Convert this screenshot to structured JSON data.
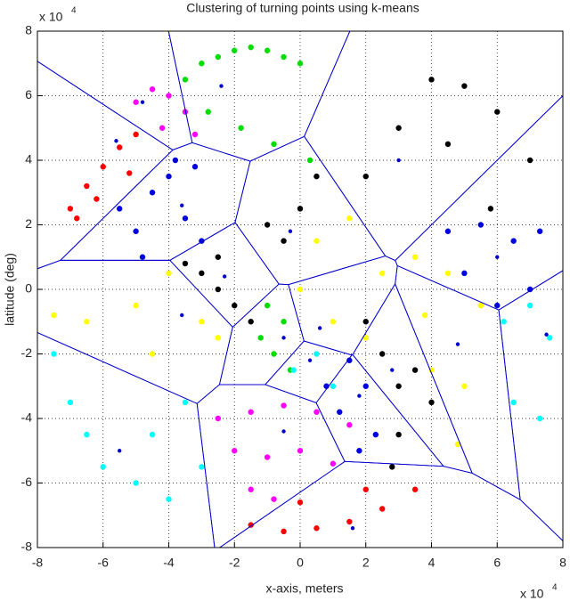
{
  "chart_data": {
    "type": "scatter",
    "title": "Clustering of turning points using k-means",
    "x_label": "x-axis, meters",
    "y_label": "latitude (deg)",
    "x_scale_note": {
      "base": "x 10",
      "exponent": "4"
    },
    "y_scale_note": {
      "base": "x 10",
      "exponent": "4"
    },
    "xlim": [
      -8,
      8
    ],
    "ylim": [
      -8,
      8
    ],
    "xticks": [
      -8,
      -6,
      -4,
      -2,
      0,
      2,
      4,
      6,
      8
    ],
    "yticks": [
      -8,
      -6,
      -4,
      -2,
      0,
      2,
      4,
      6,
      8
    ],
    "grid": true,
    "voronoi": true,
    "series": [
      {
        "color": "#00dd00",
        "x": [
          -3.5,
          -3,
          -2.5,
          -2,
          -1.5,
          -1,
          -0.5,
          0,
          -2.8,
          -1.8,
          -0.8,
          0.3,
          -1,
          -0.5,
          -0.8,
          -0.3,
          -1.2
        ],
        "y": [
          6.5,
          7,
          7.2,
          7.4,
          7.5,
          7.4,
          7.2,
          7,
          5.5,
          5,
          4.5,
          4,
          -0.5,
          -1,
          -2,
          -2.5,
          -1.5
        ]
      },
      {
        "color": "#ff00ff",
        "x": [
          -5,
          -4.5,
          -4,
          -3.5,
          -4.2,
          -3.2,
          -2.5,
          -1.5,
          -0.5,
          0.5,
          1.5,
          -2,
          -1,
          0,
          1,
          -1.5,
          -0.8
        ],
        "y": [
          5.8,
          6.2,
          6,
          5.5,
          5,
          4.8,
          -4,
          -3.8,
          -3.6,
          -3.8,
          -4.2,
          -5,
          -5.2,
          -5,
          -5.4,
          -6.2,
          -6.5
        ]
      },
      {
        "color": "#ff0000",
        "x": [
          -7,
          -6.5,
          -6,
          -5.5,
          -5,
          -6.8,
          -6.2,
          -5.2,
          -1.5,
          -0.5,
          0.5,
          1.5,
          2.5,
          3.5,
          0,
          2
        ],
        "y": [
          2.5,
          3.2,
          3.8,
          4.4,
          4.8,
          2.2,
          2.8,
          3.6,
          -7.3,
          -7.5,
          -7.4,
          -7.2,
          -6.8,
          -6.2,
          -6.6,
          -6.2
        ]
      },
      {
        "color": "#0000dd",
        "x": [
          -5.5,
          -5,
          -4.5,
          -4,
          -3.5,
          -3,
          -4.8,
          -3.8,
          -3.2,
          0.8,
          1.5,
          2,
          2.3,
          1.2,
          1.8,
          4.5,
          5.5,
          6.5,
          7.3,
          5,
          6,
          7
        ],
        "y": [
          2.5,
          1.8,
          3,
          3.5,
          2.2,
          1.5,
          1,
          4,
          3.8,
          -3,
          -2.2,
          -3,
          -4.5,
          -3.8,
          -5,
          1.8,
          2,
          1.5,
          1.8,
          0.5,
          -0.5,
          0
        ]
      },
      {
        "color": "#000000",
        "x": [
          -3.5,
          -3,
          -2.5,
          -2,
          -1.5,
          -2.5,
          -1,
          0,
          0.5,
          -0.5,
          2,
          2.5,
          3,
          3.5,
          4,
          3,
          2.8,
          2,
          3,
          4,
          5,
          6,
          7,
          4.5,
          5.8
        ],
        "y": [
          0.8,
          0.5,
          0,
          -0.5,
          -1,
          1,
          2,
          2.5,
          3.5,
          1.5,
          -1,
          -2,
          -3,
          -2.5,
          -3.5,
          -4.5,
          -5.5,
          3.5,
          5,
          6.5,
          6.3,
          5.5,
          4,
          4.5,
          2.5
        ]
      },
      {
        "color": "#ffff00",
        "x": [
          -7.5,
          -6.5,
          -5,
          -4,
          -3,
          -2.5,
          -4.5,
          0,
          0.5,
          1.5,
          2.5,
          1,
          2,
          3.5,
          4.5,
          5.5,
          4,
          5,
          4.8,
          3.8
        ],
        "y": [
          -0.8,
          -1,
          -0.5,
          0.5,
          -1,
          -1.5,
          -2,
          0,
          1.5,
          2.2,
          0.5,
          -1,
          -1.5,
          1,
          0.5,
          -0.5,
          -2.5,
          -3,
          -4.8,
          -0.8
        ]
      },
      {
        "color": "#00ffff",
        "x": [
          -7.5,
          -7,
          -6.5,
          -6,
          -5,
          -4,
          -3,
          -4.5,
          -3.5,
          -0.2,
          0.5,
          1,
          6.2,
          7,
          7.6,
          6.5,
          7.3
        ],
        "y": [
          -2,
          -3.5,
          -4.5,
          -5.5,
          -6,
          -6.5,
          -5.5,
          -4.5,
          -3.5,
          -2.5,
          -2,
          -3,
          -1,
          -0.5,
          -1.5,
          -3.5,
          -4
        ]
      }
    ],
    "centroids": {
      "color": "#0000cc",
      "x": [
        -2.4,
        -4.8,
        -5.6,
        -3.6,
        -2.3,
        -3.6,
        -5.5,
        -0.5,
        1.6,
        -0.5,
        0.3,
        1.8,
        0.6,
        2.8,
        4.8,
        7.5,
        6,
        3,
        -0.3
      ],
      "y": [
        6.3,
        5.8,
        4.6,
        2.6,
        0.4,
        -0.8,
        -5,
        -4.4,
        -7.4,
        -1.5,
        -2.2,
        -3.3,
        -1.2,
        -2.5,
        -1.7,
        -1.4,
        1,
        4,
        1.8
      ]
    }
  }
}
